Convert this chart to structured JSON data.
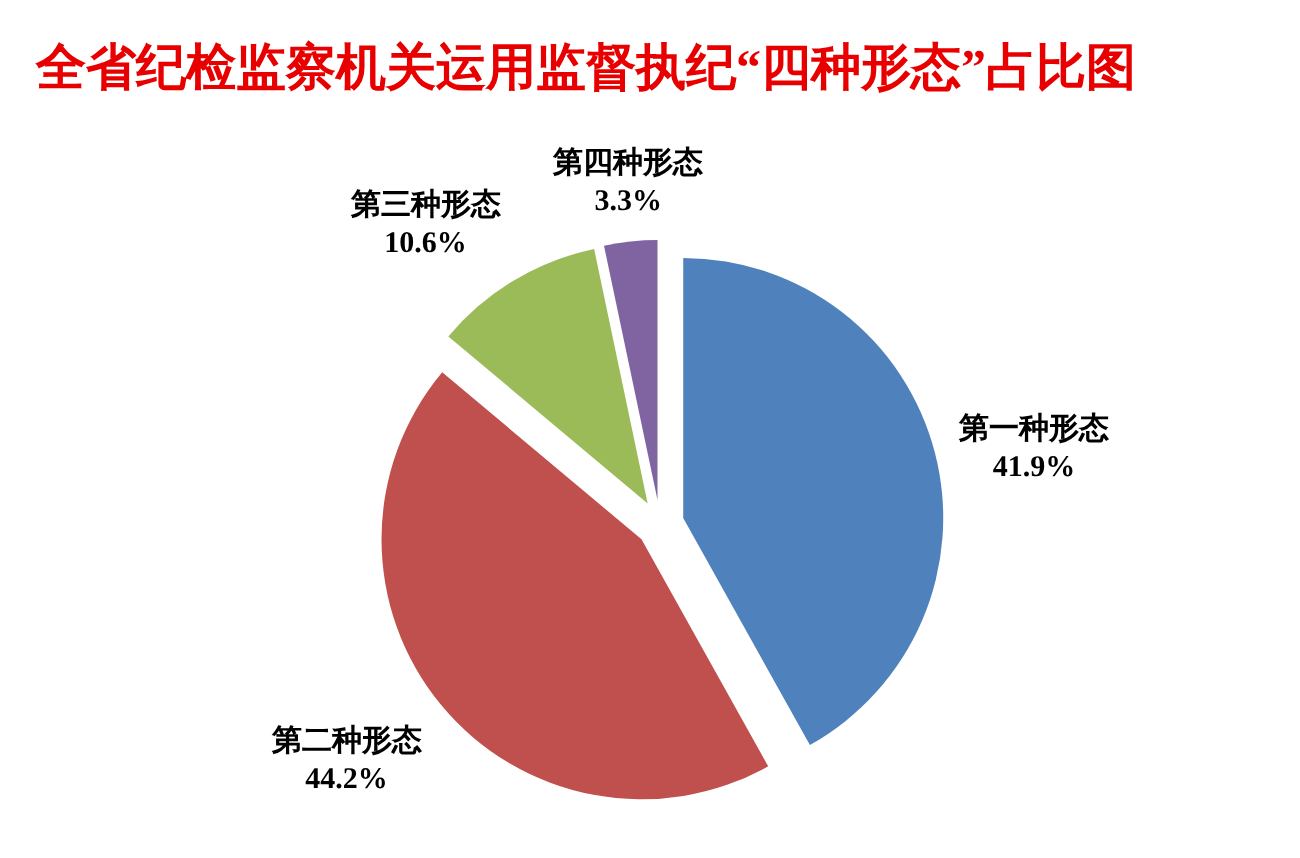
{
  "chart_data": {
    "type": "pie",
    "title": "全省纪检监察机关运用监督执纪“四种形态”占比图",
    "categories": [
      "第一种形态",
      "第二种形态",
      "第三种形态",
      "第四种形态"
    ],
    "values": [
      41.9,
      44.2,
      10.6,
      3.3
    ],
    "value_labels": [
      "41.9%",
      "44.2%",
      "10.6%",
      "3.3%"
    ],
    "colors": [
      "#4f81bd",
      "#c0504d",
      "#9bbb59",
      "#8064a2"
    ]
  }
}
